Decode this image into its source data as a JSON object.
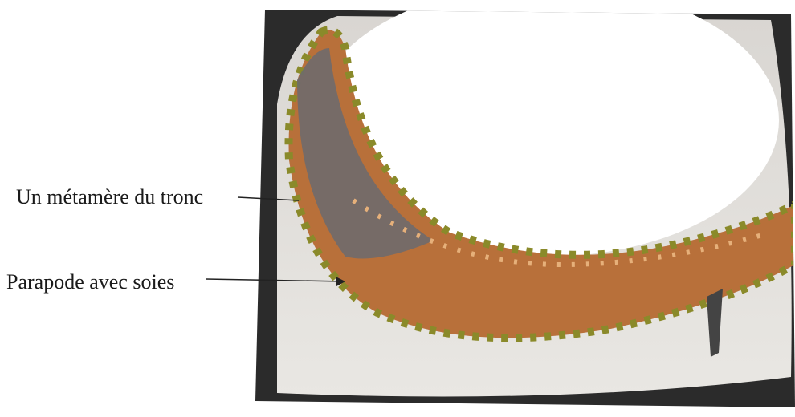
{
  "labels": [
    {
      "text": "Un métamère du tronc"
    },
    {
      "text": "Parapode avec soies"
    }
  ]
}
